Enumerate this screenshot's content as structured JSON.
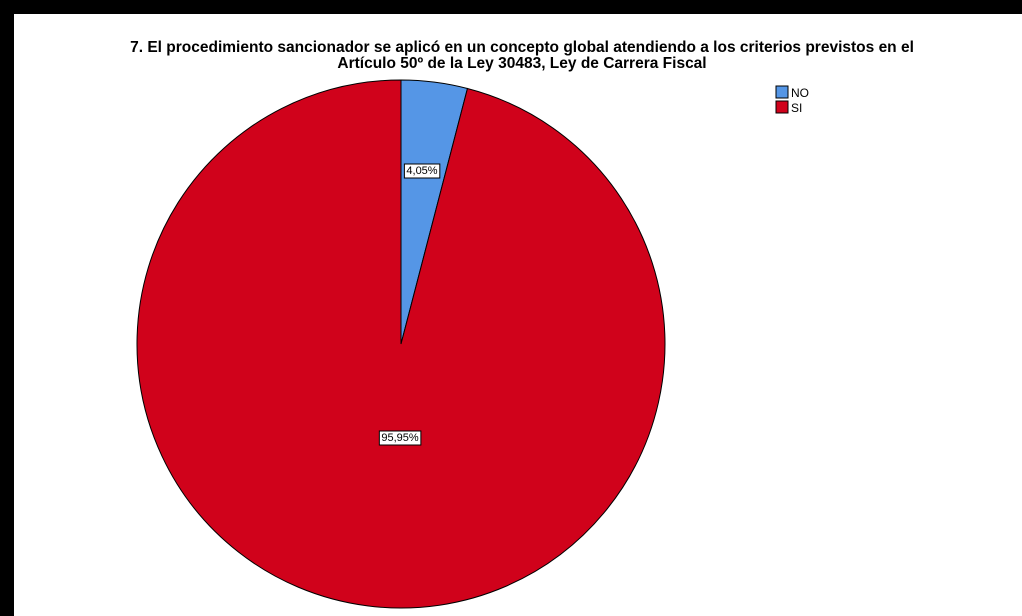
{
  "chart_data": {
    "type": "pie",
    "title": "7. El procedimiento sancionador se aplicó en un concepto global atendiendo a los criterios previstos en el Artículo 50º de la Ley 30483, Ley de Carrera Fiscal",
    "title_lines": [
      "7. El procedimiento sancionador se aplicó en un concepto global atendiendo a los criterios previstos en el",
      "Artículo 50º de la Ley 30483, Ley de Carrera Fiscal"
    ],
    "categories": [
      "NO",
      "SI"
    ],
    "values": [
      4.05,
      95.95
    ],
    "data_labels": [
      "4,05%",
      "95,95%"
    ],
    "colors": [
      "#5596e6",
      "#d0021b"
    ],
    "slice_border_color": "#000000",
    "start_angle": "12 o'clock",
    "direction": "clockwise",
    "legend": {
      "placement": "top-right",
      "entries": [
        "NO",
        "SI"
      ]
    }
  }
}
